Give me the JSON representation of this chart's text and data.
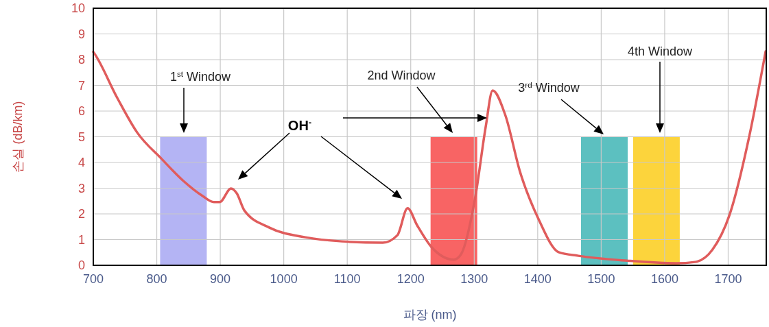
{
  "chart_data": {
    "type": "line",
    "xlabel": "파장 (nm)",
    "ylabel": "손실 (dB/km)",
    "xlim": [
      700,
      1760
    ],
    "ylim": [
      0,
      10
    ],
    "xticks": [
      700,
      800,
      900,
      1000,
      1100,
      1200,
      1300,
      1400,
      1500,
      1600,
      1700
    ],
    "yticks": [
      0,
      1,
      2,
      3,
      4,
      5,
      6,
      7,
      8,
      9,
      10
    ],
    "grid": true,
    "series": [
      {
        "type": "bar",
        "x": [
          842,
          1268,
          1505,
          1587
        ],
        "values": [
          5,
          5,
          5,
          5
        ],
        "colors": [
          "#b4b4f4",
          "#f86464",
          "#5cc0c0",
          "#fcd43c"
        ]
      },
      {
        "color": "#e05c5c",
        "x": [
          700,
          702,
          738,
          769,
          808,
          842,
          872,
          890,
          899,
          917,
          926,
          938,
          977,
          1034,
          1092,
          1156,
          1179,
          1195,
          1210,
          1233,
          1268,
          1279,
          1302,
          1318,
          1329,
          1349,
          1372,
          1402,
          1433,
          1464,
          1541,
          1618,
          1648,
          1675,
          1702,
          1733,
          1759
        ],
        "values": [
          8.3,
          8.23,
          6.5,
          5.17,
          4.13,
          3.28,
          2.7,
          2.46,
          2.46,
          2.99,
          2.8,
          2.13,
          1.47,
          1.09,
          0.93,
          0.88,
          1.17,
          2.22,
          1.56,
          0.7,
          0.22,
          0.42,
          2.7,
          5.37,
          6.8,
          5.84,
          3.65,
          1.76,
          0.51,
          0.37,
          0.18,
          0.08,
          0.13,
          0.6,
          1.95,
          4.99,
          8.32
        ]
      }
    ],
    "annotations": [
      "1$^{st}$ Window",
      "2nd Window",
      "3$^{rd}$ Window",
      "4th Window",
      "OH$^{-}$"
    ]
  }
}
